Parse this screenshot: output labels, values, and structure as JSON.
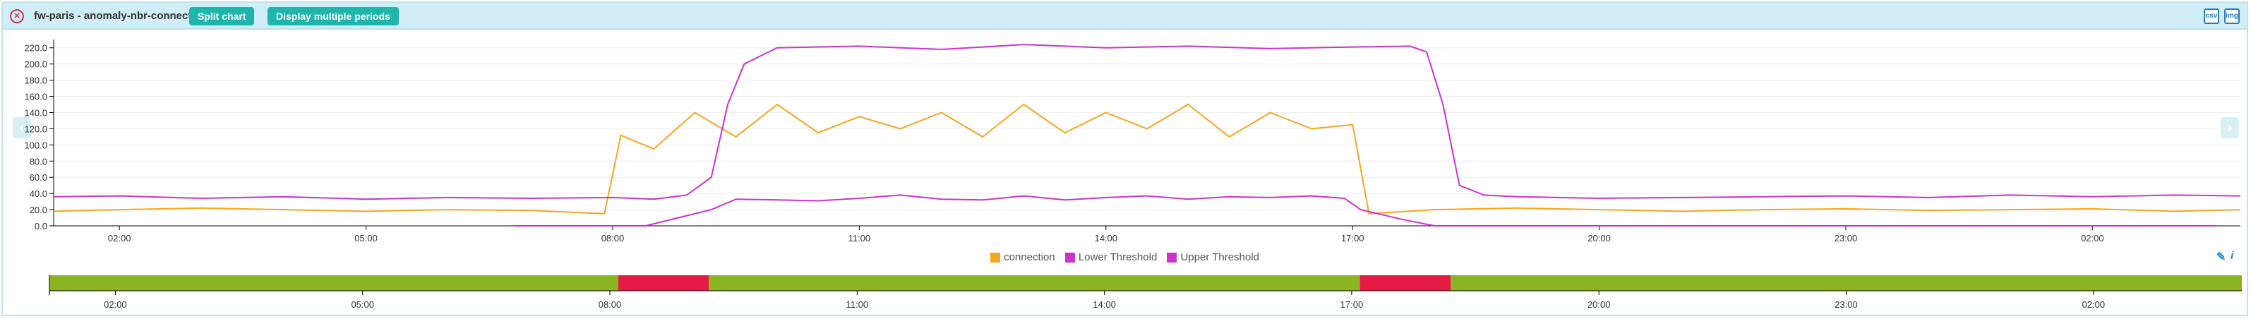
{
  "header": {
    "title": "fw-paris - anomaly-nbr-connect",
    "split_label": "Split chart",
    "periods_label": "Display multiple periods",
    "close_glyph": "×",
    "icon_csv": "csv",
    "icon_img": "img"
  },
  "nav": {
    "left_glyph": "‹",
    "right_glyph": "›"
  },
  "legend": {
    "tools_pen": "✎",
    "tools_info": "i"
  },
  "chart_data": {
    "type": "line",
    "y_ticks": [
      "0.0",
      "20.0",
      "40.0",
      "60.0",
      "80.0",
      "100.0",
      "120.0",
      "140.0",
      "160.0",
      "180.0",
      "200.0",
      "220.0"
    ],
    "ylim": [
      0,
      225
    ],
    "x_ticks": [
      {
        "label": "02:00",
        "t": 2
      },
      {
        "label": "05:00",
        "t": 5
      },
      {
        "label": "08:00",
        "t": 8
      },
      {
        "label": "11:00",
        "t": 11
      },
      {
        "label": "14:00",
        "t": 14
      },
      {
        "label": "17:00",
        "t": 17
      },
      {
        "label": "20:00",
        "t": 20
      },
      {
        "label": "23:00",
        "t": 23
      },
      {
        "label": "02:00",
        "t": 26
      }
    ],
    "xlim": [
      1.2,
      27.8
    ],
    "series": [
      {
        "name": "connection",
        "color": "#f5a623",
        "points": [
          [
            1.2,
            18
          ],
          [
            2,
            20
          ],
          [
            3,
            22
          ],
          [
            4,
            20
          ],
          [
            5,
            18
          ],
          [
            6,
            20
          ],
          [
            7,
            19
          ],
          [
            7.9,
            15
          ],
          [
            8.1,
            112
          ],
          [
            8.5,
            95
          ],
          [
            9,
            140
          ],
          [
            9.5,
            110
          ],
          [
            10,
            150
          ],
          [
            10.5,
            115
          ],
          [
            11,
            135
          ],
          [
            11.5,
            120
          ],
          [
            12,
            140
          ],
          [
            12.5,
            110
          ],
          [
            13,
            150
          ],
          [
            13.5,
            115
          ],
          [
            14,
            140
          ],
          [
            14.5,
            120
          ],
          [
            15,
            150
          ],
          [
            15.5,
            110
          ],
          [
            16,
            140
          ],
          [
            16.5,
            120
          ],
          [
            17,
            125
          ],
          [
            17.2,
            15
          ],
          [
            18,
            20
          ],
          [
            19,
            22
          ],
          [
            20,
            20
          ],
          [
            21,
            18
          ],
          [
            22,
            20
          ],
          [
            23,
            21
          ],
          [
            24,
            19
          ],
          [
            25,
            20
          ],
          [
            26,
            21
          ],
          [
            27,
            18
          ],
          [
            27.8,
            20
          ]
        ]
      },
      {
        "name": "Lower Threshold",
        "color": "#cc33cc",
        "points": [
          [
            6.8,
            0
          ],
          [
            7.5,
            0
          ],
          [
            8,
            0
          ],
          [
            8.4,
            0
          ],
          [
            8.8,
            10
          ],
          [
            9.2,
            20
          ],
          [
            9.5,
            33
          ],
          [
            10,
            32
          ],
          [
            10.5,
            31
          ],
          [
            11,
            34
          ],
          [
            11.5,
            38
          ],
          [
            12,
            33
          ],
          [
            12.5,
            32
          ],
          [
            13,
            37
          ],
          [
            13.5,
            32
          ],
          [
            14,
            35
          ],
          [
            14.5,
            37
          ],
          [
            15,
            33
          ],
          [
            15.5,
            36
          ],
          [
            16,
            35
          ],
          [
            16.5,
            37
          ],
          [
            16.9,
            34
          ],
          [
            17.1,
            20
          ],
          [
            17.6,
            8
          ],
          [
            18,
            0
          ],
          [
            18.5,
            0
          ],
          [
            24,
            0
          ],
          [
            25,
            0
          ],
          [
            26,
            0
          ],
          [
            27,
            0
          ],
          [
            27.5,
            0
          ]
        ]
      },
      {
        "name": "Upper Threshold",
        "color": "#cc33cc",
        "points": [
          [
            1.2,
            36
          ],
          [
            2,
            37
          ],
          [
            3,
            34
          ],
          [
            4,
            36
          ],
          [
            5,
            33
          ],
          [
            6,
            35
          ],
          [
            7,
            34
          ],
          [
            8,
            35
          ],
          [
            8.5,
            33
          ],
          [
            8.9,
            38
          ],
          [
            9.2,
            60
          ],
          [
            9.4,
            150
          ],
          [
            9.6,
            200
          ],
          [
            10,
            220
          ],
          [
            11,
            222
          ],
          [
            12,
            218
          ],
          [
            13,
            224
          ],
          [
            14,
            220
          ],
          [
            15,
            222
          ],
          [
            16,
            219
          ],
          [
            17,
            221
          ],
          [
            17.7,
            222
          ],
          [
            17.9,
            215
          ],
          [
            18.1,
            150
          ],
          [
            18.3,
            50
          ],
          [
            18.6,
            38
          ],
          [
            19,
            36
          ],
          [
            20,
            34
          ],
          [
            21,
            35
          ],
          [
            22,
            36
          ],
          [
            23,
            37
          ],
          [
            24,
            35
          ],
          [
            25,
            38
          ],
          [
            26,
            36
          ],
          [
            27,
            38
          ],
          [
            27.8,
            37
          ]
        ]
      }
    ],
    "timeline": [
      {
        "from": 1.2,
        "to": 8.1,
        "status": "normal",
        "color": "#8cb523"
      },
      {
        "from": 8.1,
        "to": 9.2,
        "status": "anomaly",
        "color": "#e41c43"
      },
      {
        "from": 9.2,
        "to": 17.1,
        "status": "normal",
        "color": "#8cb523"
      },
      {
        "from": 17.1,
        "to": 18.2,
        "status": "anomaly",
        "color": "#e41c43"
      },
      {
        "from": 18.2,
        "to": 27.8,
        "status": "normal",
        "color": "#8cb523"
      }
    ]
  }
}
